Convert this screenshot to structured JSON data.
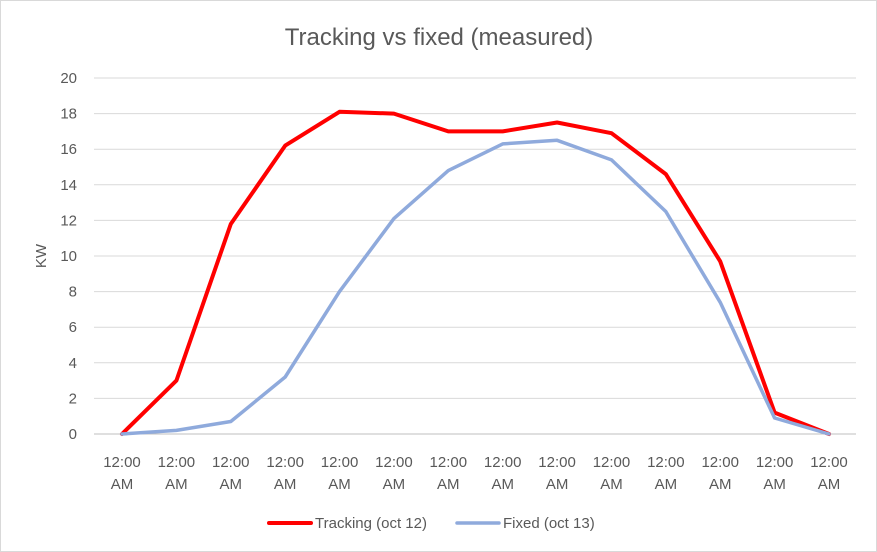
{
  "chart_data": {
    "type": "line",
    "title": "Tracking vs fixed (measured)",
    "xlabel": "",
    "ylabel": "KW",
    "ylim": [
      0,
      20
    ],
    "yticks": [
      0,
      2,
      4,
      6,
      8,
      10,
      12,
      14,
      16,
      18,
      20
    ],
    "grid": true,
    "legend": "bottom",
    "categories": [
      "12:00 AM",
      "12:00 AM",
      "12:00 AM",
      "12:00 AM",
      "12:00 AM",
      "12:00 AM",
      "12:00 AM",
      "12:00 AM",
      "12:00 AM",
      "12:00 AM",
      "12:00 AM",
      "12:00 AM",
      "12:00 AM",
      "12:00 AM"
    ],
    "series": [
      {
        "name": "Tracking (oct 12)",
        "color": "#ff0000",
        "values": [
          0,
          3.0,
          11.8,
          16.2,
          18.1,
          18.0,
          17.0,
          17.0,
          17.5,
          16.9,
          14.6,
          9.7,
          1.2,
          0
        ]
      },
      {
        "name": "Fixed (oct 13)",
        "color": "#8faadc",
        "values": [
          0,
          0.2,
          0.7,
          3.2,
          8.0,
          12.1,
          14.8,
          16.3,
          16.5,
          15.4,
          12.5,
          7.4,
          0.9,
          0
        ]
      }
    ]
  }
}
